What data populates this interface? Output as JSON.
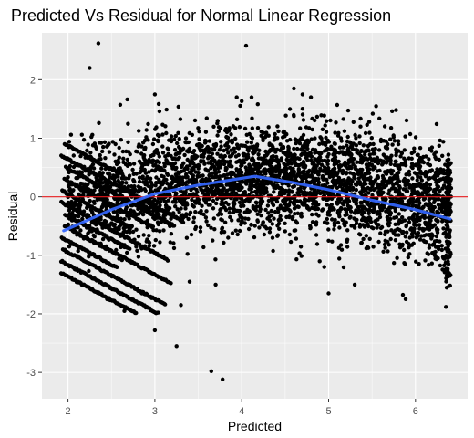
{
  "chart_data": {
    "type": "scatter",
    "title": "Predicted Vs Residual for Normal Linear Regression",
    "xlabel": "Predicted",
    "ylabel": "Residual",
    "xlim": [
      1.7,
      6.6
    ],
    "ylim": [
      -3.45,
      2.8
    ],
    "x_ticks": [
      2,
      3,
      4,
      5,
      6
    ],
    "y_ticks": [
      -3,
      -2,
      -1,
      0,
      1,
      2
    ],
    "x_tick_labels": [
      "2",
      "3",
      "4",
      "5",
      "6"
    ],
    "y_tick_labels": [
      "-3",
      "-2",
      "-1",
      "0",
      "1",
      "2"
    ],
    "grid": true,
    "reference_line": {
      "y": 0,
      "color": "#e31a1c"
    },
    "smooth_line": {
      "color": "#3366ff",
      "points": [
        [
          1.95,
          -0.58
        ],
        [
          2.5,
          -0.22
        ],
        [
          3.0,
          0.05
        ],
        [
          3.5,
          0.2
        ],
        [
          4.15,
          0.35
        ],
        [
          4.6,
          0.24
        ],
        [
          5.0,
          0.12
        ],
        [
          5.5,
          -0.06
        ],
        [
          6.0,
          -0.22
        ],
        [
          6.4,
          -0.38
        ]
      ]
    },
    "point_color": "#000000",
    "outliers": [
      [
        2.35,
        2.62
      ],
      [
        2.25,
        2.2
      ],
      [
        4.05,
        2.58
      ],
      [
        4.6,
        1.85
      ],
      [
        4.7,
        1.75
      ],
      [
        3.0,
        1.75
      ],
      [
        3.25,
        -2.55
      ],
      [
        3.65,
        -2.98
      ],
      [
        3.78,
        -3.12
      ],
      [
        3.7,
        -1.5
      ],
      [
        3.0,
        -2.28
      ],
      [
        3.3,
        -1.85
      ],
      [
        3.4,
        -1.45
      ],
      [
        2.65,
        -1.95
      ],
      [
        2.45,
        -1.75
      ],
      [
        6.35,
        -1.88
      ],
      [
        5.0,
        -1.65
      ],
      [
        4.95,
        -1.2
      ],
      [
        5.3,
        -1.5
      ],
      [
        2.85,
        -1.65
      ]
    ]
  }
}
